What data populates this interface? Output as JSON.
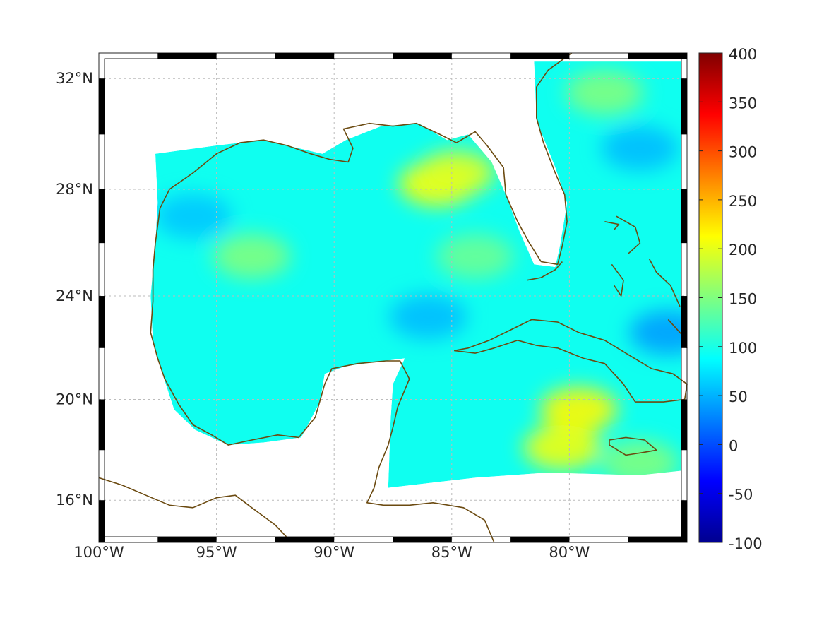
{
  "map": {
    "projection": "mercator",
    "lon_range": [
      -100,
      -75
    ],
    "lat_range": [
      14.3,
      32.9
    ],
    "lon_ticks": [
      {
        "value": -100,
        "label": "100°W"
      },
      {
        "value": -95,
        "label": "95°W"
      },
      {
        "value": -90,
        "label": "90°W"
      },
      {
        "value": -85,
        "label": "85°W"
      },
      {
        "value": -80,
        "label": "80°W"
      }
    ],
    "lat_ticks": [
      {
        "value": 16,
        "label": "16°N"
      },
      {
        "value": 20,
        "label": "20°N"
      },
      {
        "value": 24,
        "label": "24°N"
      },
      {
        "value": 28,
        "label": "28°N"
      },
      {
        "value": 32,
        "label": "32°N"
      }
    ],
    "grid": true,
    "frame": "alternating black-white border",
    "coastline_color": "#6b4a10",
    "field_colormap": "jet",
    "field_base_value": 95,
    "features": [
      {
        "name": "high-ne-gulf",
        "lon": -85.6,
        "lat": 28.2,
        "value": 210
      },
      {
        "name": "high-ne-gulf-2",
        "lon": -84.8,
        "lat": 28.6,
        "value": 195
      },
      {
        "name": "high-cayman",
        "lon": -79.6,
        "lat": 19.6,
        "value": 215
      },
      {
        "name": "high-jamaica-south",
        "lon": -80.3,
        "lat": 18.1,
        "value": 205
      },
      {
        "name": "high-western-gulf",
        "lon": -93.5,
        "lat": 25.5,
        "value": 150
      },
      {
        "name": "high-florida-straits",
        "lon": -84.0,
        "lat": 25.5,
        "value": 140
      },
      {
        "name": "high-atlantic-north",
        "lon": -78.5,
        "lat": 31.5,
        "value": 150
      },
      {
        "name": "high-caribbean-se",
        "lon": -77.0,
        "lat": 17.5,
        "value": 150
      },
      {
        "name": "low-central",
        "lon": -86.0,
        "lat": 23.2,
        "value": 55
      },
      {
        "name": "low-bahamas",
        "lon": -75.8,
        "lat": 22.6,
        "value": 40
      },
      {
        "name": "low-atlantic",
        "lon": -77.0,
        "lat": 29.5,
        "value": 55
      },
      {
        "name": "low-west-gulf",
        "lon": -96.0,
        "lat": 27.0,
        "value": 60
      }
    ]
  },
  "colorbar": {
    "colormap": "jet",
    "range": [
      -100,
      400
    ],
    "ticks": [
      "-100",
      "-50",
      "0",
      "50",
      "100",
      "150",
      "200",
      "250",
      "300",
      "350",
      "400"
    ]
  }
}
